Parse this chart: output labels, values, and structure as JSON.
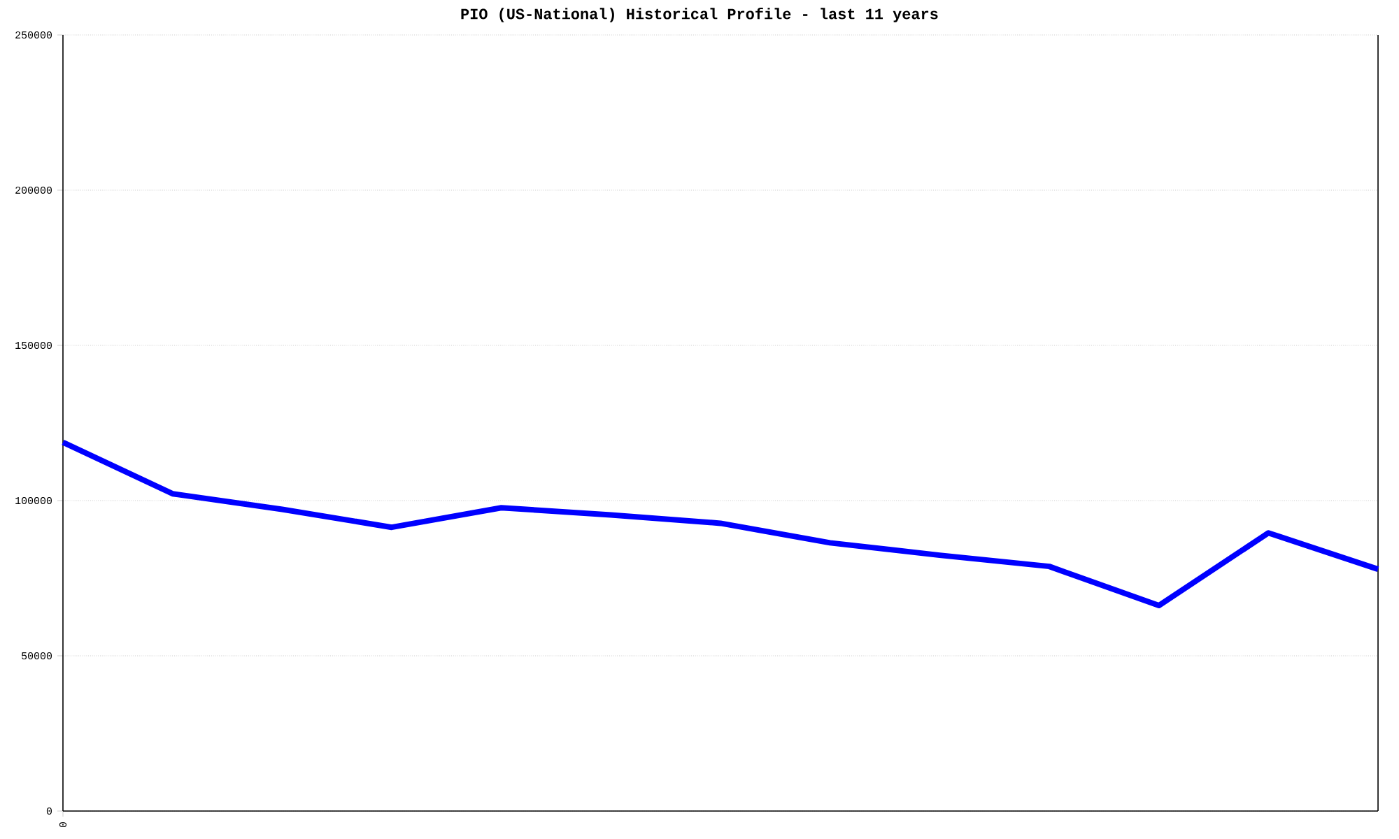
{
  "chart_data": {
    "type": "line",
    "title": "PIO (US-National) Historical Profile - last 11 years",
    "categories": [
      "0",
      null,
      null,
      null,
      null,
      null,
      null,
      null,
      null,
      null,
      null,
      null,
      null
    ],
    "series": [
      {
        "color": "#0000ff",
        "values": [
          118800,
          102200,
          97200,
          91400,
          97700,
          95400,
          92700,
          86400,
          82400,
          78800,
          66200,
          89600,
          77900
        ]
      }
    ],
    "ylim": [
      0,
      250000
    ],
    "yticks": [
      0,
      50000,
      100000,
      150000,
      200000,
      250000
    ],
    "grid": "y",
    "marker": "none",
    "line_style": "solid"
  }
}
